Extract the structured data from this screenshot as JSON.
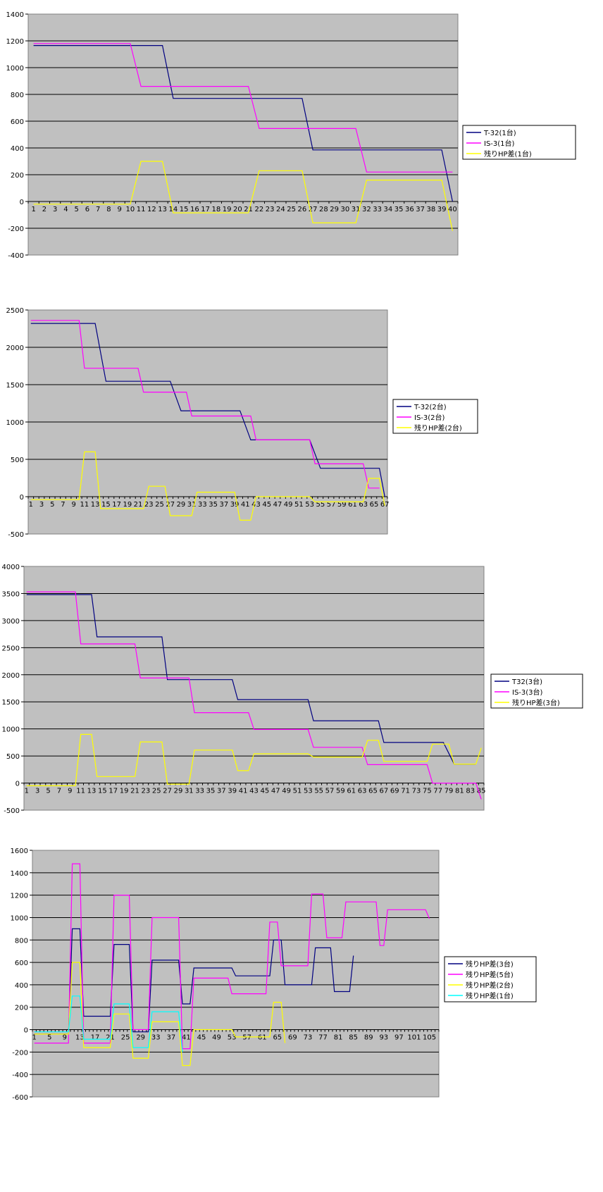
{
  "chart_data": [
    {
      "type": "line",
      "ylim": [
        -400,
        1400
      ],
      "yticks": [
        -400,
        -200,
        0,
        200,
        400,
        600,
        800,
        1000,
        1200,
        1400
      ],
      "x_count": 40,
      "x_label_step": 1,
      "grid": true,
      "legend_position": "right",
      "series": [
        {
          "name": "T-32(1台)",
          "color": "#000080",
          "points": [
            [
              1,
              1165
            ],
            [
              13,
              1165
            ],
            [
              14,
              770
            ],
            [
              26,
              770
            ],
            [
              27,
              385
            ],
            [
              39,
              385
            ],
            [
              40,
              0
            ]
          ]
        },
        {
          "name": "IS-3(1台)",
          "color": "#ff00ff",
          "points": [
            [
              1,
              1180
            ],
            [
              10,
              1180
            ],
            [
              11,
              860
            ],
            [
              21,
              860
            ],
            [
              22,
              545
            ],
            [
              31,
              545
            ],
            [
              32,
              220
            ],
            [
              40,
              220
            ]
          ]
        },
        {
          "name": "残りHP差(1台)",
          "color": "#ffff00",
          "points": [
            [
              1,
              -20
            ],
            [
              10,
              -20
            ],
            [
              11,
              300
            ],
            [
              13,
              300
            ],
            [
              14,
              -85
            ],
            [
              21,
              -85
            ],
            [
              22,
              230
            ],
            [
              26,
              230
            ],
            [
              27,
              -160
            ],
            [
              31,
              -160
            ],
            [
              32,
              160
            ],
            [
              39,
              160
            ],
            [
              40,
              -220
            ]
          ]
        }
      ]
    },
    {
      "type": "line",
      "ylim": [
        -500,
        2500
      ],
      "yticks": [
        -500,
        0,
        500,
        1000,
        1500,
        2000,
        2500
      ],
      "x_count": 67,
      "x_label_step": 2,
      "grid": true,
      "legend_position": "right",
      "series": [
        {
          "name": "T-32(2台)",
          "color": "#000080",
          "points": [
            [
              1,
              2320
            ],
            [
              13,
              2320
            ],
            [
              15,
              1545
            ],
            [
              27,
              1545
            ],
            [
              29,
              1150
            ],
            [
              40,
              1150
            ],
            [
              42,
              760
            ],
            [
              53,
              760
            ],
            [
              55,
              380
            ],
            [
              66,
              380
            ],
            [
              67,
              0
            ]
          ]
        },
        {
          "name": "IS-3(2台)",
          "color": "#ff00ff",
          "points": [
            [
              1,
              2360
            ],
            [
              10,
              2360
            ],
            [
              11,
              1720
            ],
            [
              21,
              1720
            ],
            [
              22,
              1400
            ],
            [
              30,
              1400
            ],
            [
              31,
              1080
            ],
            [
              42,
              1080
            ],
            [
              43,
              760
            ],
            [
              53,
              760
            ],
            [
              54,
              440
            ],
            [
              63,
              440
            ],
            [
              64,
              115
            ],
            [
              66,
              115
            ]
          ]
        },
        {
          "name": "残りHP差(2台)",
          "color": "#ffff00",
          "points": [
            [
              1,
              -40
            ],
            [
              10,
              -40
            ],
            [
              11,
              600
            ],
            [
              13,
              600
            ],
            [
              14,
              -160
            ],
            [
              22,
              -160
            ],
            [
              23,
              140
            ],
            [
              26,
              140
            ],
            [
              27,
              -255
            ],
            [
              31,
              -255
            ],
            [
              32,
              60
            ],
            [
              39,
              60
            ],
            [
              40,
              -315
            ],
            [
              42,
              -315
            ],
            [
              43,
              0
            ],
            [
              53,
              0
            ],
            [
              54,
              -70
            ],
            [
              63,
              -70
            ],
            [
              64,
              245
            ],
            [
              66,
              245
            ],
            [
              67,
              -120
            ]
          ]
        }
      ]
    },
    {
      "type": "line",
      "ylim": [
        -500,
        4000
      ],
      "yticks": [
        -500,
        0,
        500,
        1000,
        1500,
        2000,
        2500,
        3000,
        3500,
        4000
      ],
      "x_count": 85,
      "x_label_step": 2,
      "grid": true,
      "legend_position": "right",
      "series": [
        {
          "name": "T32(3台)",
          "color": "#000080",
          "points": [
            [
              1,
              3480
            ],
            [
              13,
              3480
            ],
            [
              14,
              2700
            ],
            [
              26,
              2700
            ],
            [
              27,
              1910
            ],
            [
              39,
              1910
            ],
            [
              40,
              1540
            ],
            [
              53,
              1540
            ],
            [
              54,
              1150
            ],
            [
              66,
              1150
            ],
            [
              67,
              750
            ],
            [
              78,
              750
            ],
            [
              80,
              350
            ],
            [
              84,
              350
            ]
          ]
        },
        {
          "name": "IS-3(3台)",
          "color": "#ff00ff",
          "points": [
            [
              1,
              3530
            ],
            [
              10,
              3530
            ],
            [
              11,
              2570
            ],
            [
              21,
              2570
            ],
            [
              22,
              1940
            ],
            [
              31,
              1940
            ],
            [
              32,
              1300
            ],
            [
              42,
              1300
            ],
            [
              43,
              990
            ],
            [
              53,
              990
            ],
            [
              54,
              660
            ],
            [
              63,
              660
            ],
            [
              64,
              340
            ],
            [
              75,
              340
            ],
            [
              76,
              0
            ],
            [
              84,
              0
            ],
            [
              85,
              -300
            ]
          ]
        },
        {
          "name": "残りHP差(3台)",
          "color": "#ffff00",
          "points": [
            [
              1,
              -50
            ],
            [
              10,
              -50
            ],
            [
              11,
              900
            ],
            [
              13,
              900
            ],
            [
              14,
              120
            ],
            [
              21,
              120
            ],
            [
              22,
              760
            ],
            [
              26,
              760
            ],
            [
              27,
              -20
            ],
            [
              31,
              -20
            ],
            [
              32,
              610
            ],
            [
              39,
              610
            ],
            [
              40,
              230
            ],
            [
              42,
              230
            ],
            [
              43,
              540
            ],
            [
              53,
              540
            ],
            [
              54,
              480
            ],
            [
              63,
              480
            ],
            [
              64,
              790
            ],
            [
              66,
              790
            ],
            [
              67,
              400
            ],
            [
              75,
              400
            ],
            [
              76,
              720
            ],
            [
              79,
              720
            ],
            [
              80,
              350
            ],
            [
              84,
              350
            ],
            [
              85,
              650
            ]
          ]
        }
      ]
    },
    {
      "type": "line",
      "ylim": [
        -600,
        1600
      ],
      "yticks": [
        -600,
        -400,
        -200,
        0,
        200,
        400,
        600,
        800,
        1000,
        1200,
        1400,
        1600
      ],
      "x_count": 107,
      "x_labels": [
        1,
        5,
        9,
        13,
        17,
        21,
        25,
        29,
        33,
        37,
        41,
        45,
        49,
        53,
        57,
        61,
        65,
        69,
        73,
        77,
        81,
        85,
        89,
        93,
        97,
        101,
        105
      ],
      "grid": true,
      "legend_position": "right",
      "series": [
        {
          "name": "残りHP差(3台)",
          "color": "#000080",
          "points": [
            [
              1,
              -40
            ],
            [
              10,
              -40
            ],
            [
              11,
              900
            ],
            [
              13,
              900
            ],
            [
              14,
              120
            ],
            [
              21,
              120
            ],
            [
              22,
              760
            ],
            [
              26,
              760
            ],
            [
              27,
              -20
            ],
            [
              31,
              -20
            ],
            [
              32,
              620
            ],
            [
              39,
              620
            ],
            [
              40,
              230
            ],
            [
              42,
              230
            ],
            [
              43,
              550
            ],
            [
              53,
              550
            ],
            [
              54,
              480
            ],
            [
              63,
              480
            ],
            [
              64,
              800
            ],
            [
              66,
              800
            ],
            [
              67,
              400
            ],
            [
              74,
              400
            ],
            [
              75,
              730
            ],
            [
              79,
              730
            ],
            [
              80,
              340
            ],
            [
              84,
              340
            ],
            [
              85,
              660
            ]
          ]
        },
        {
          "name": "残りHP差(5台)",
          "color": "#ff00ff",
          "points": [
            [
              1,
              -120
            ],
            [
              10,
              -120
            ],
            [
              11,
              1480
            ],
            [
              13,
              1480
            ],
            [
              14,
              -120
            ],
            [
              21,
              -120
            ],
            [
              22,
              1200
            ],
            [
              26,
              1200
            ],
            [
              27,
              0
            ],
            [
              31,
              0
            ],
            [
              32,
              1000
            ],
            [
              39,
              1000
            ],
            [
              40,
              -170
            ],
            [
              42,
              -170
            ],
            [
              43,
              460
            ],
            [
              52,
              460
            ],
            [
              53,
              320
            ],
            [
              62,
              320
            ],
            [
              63,
              960
            ],
            [
              65,
              960
            ],
            [
              66,
              570
            ],
            [
              73,
              570
            ],
            [
              74,
              1210
            ],
            [
              77,
              1210
            ],
            [
              78,
              820
            ],
            [
              82,
              820
            ],
            [
              83,
              1140
            ],
            [
              91,
              1140
            ],
            [
              92,
              750
            ],
            [
              93,
              750
            ],
            [
              94,
              1070
            ],
            [
              104,
              1070
            ],
            [
              105,
              990
            ]
          ]
        },
        {
          "name": "残りHP差(2台)",
          "color": "#ffff00",
          "points": [
            [
              1,
              -40
            ],
            [
              10,
              -40
            ],
            [
              11,
              600
            ],
            [
              13,
              600
            ],
            [
              14,
              -160
            ],
            [
              21,
              -160
            ],
            [
              22,
              140
            ],
            [
              26,
              140
            ],
            [
              27,
              -255
            ],
            [
              31,
              -255
            ],
            [
              32,
              70
            ],
            [
              39,
              70
            ],
            [
              40,
              -320
            ],
            [
              42,
              -320
            ],
            [
              43,
              0
            ],
            [
              53,
              0
            ],
            [
              54,
              -65
            ],
            [
              63,
              -65
            ],
            [
              64,
              245
            ],
            [
              66,
              245
            ],
            [
              67,
              -120
            ]
          ]
        },
        {
          "name": "残りHP差(1台)",
          "color": "#00ffff",
          "points": [
            [
              1,
              -20
            ],
            [
              10,
              -20
            ],
            [
              11,
              300
            ],
            [
              13,
              300
            ],
            [
              14,
              -85
            ],
            [
              21,
              -85
            ],
            [
              22,
              230
            ],
            [
              26,
              230
            ],
            [
              27,
              -160
            ],
            [
              31,
              -160
            ],
            [
              32,
              160
            ],
            [
              39,
              160
            ],
            [
              40,
              -200
            ]
          ]
        }
      ]
    }
  ]
}
